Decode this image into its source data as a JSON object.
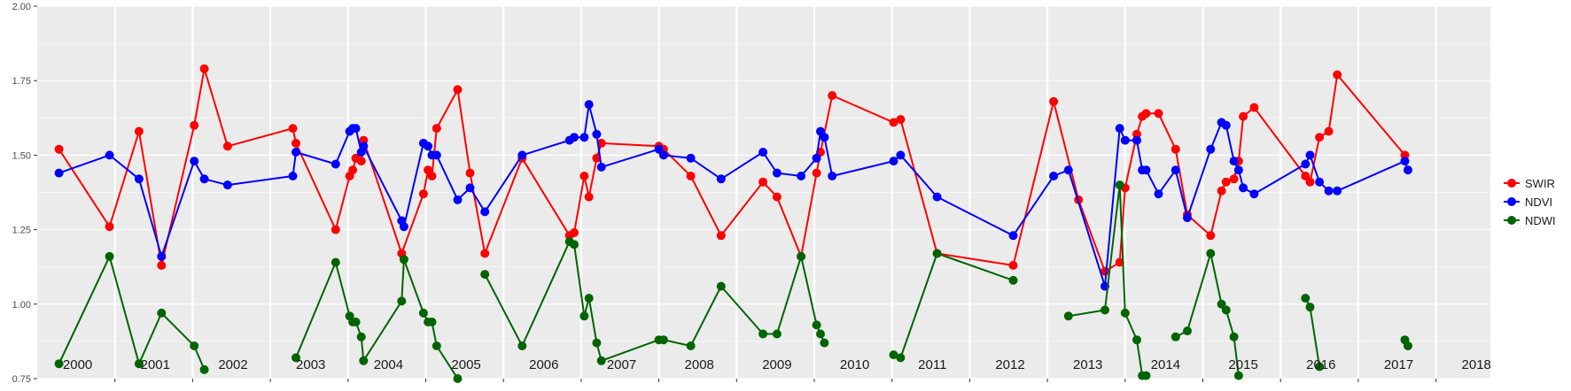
{
  "chart_data": {
    "type": "line",
    "title": "",
    "xlabel": "",
    "ylabel": "",
    "ylim": [
      0.75,
      2.0
    ],
    "xlim": [
      2000.0,
      2018.7
    ],
    "yticks": [
      "0.75",
      "1.00",
      "1.25",
      "1.50",
      "1.75",
      "2.00"
    ],
    "year_labels": [
      "2000",
      "2001",
      "2002",
      "2003",
      "2004",
      "2005",
      "2006",
      "2007",
      "2008",
      "2009",
      "2010",
      "2011",
      "2012",
      "2013",
      "2014",
      "2015",
      "2016",
      "2017",
      "2018"
    ],
    "grid": true,
    "legend_position": "right",
    "series": [
      {
        "name": "SWIR",
        "color": "#ff0000",
        "points": [
          [
            2000.28,
            1.52
          ],
          [
            2000.93,
            1.26
          ],
          [
            2001.31,
            1.58
          ],
          [
            2001.6,
            1.13
          ],
          [
            2002.02,
            1.6
          ],
          [
            2002.15,
            1.79
          ],
          [
            2002.45,
            1.53
          ],
          [
            2003.29,
            1.59
          ],
          [
            2003.33,
            1.54
          ],
          [
            2003.84,
            1.25
          ],
          [
            2004.02,
            1.43
          ],
          [
            2004.06,
            1.45
          ],
          [
            2004.1,
            1.49
          ],
          [
            2004.17,
            1.48
          ],
          [
            2004.2,
            1.55
          ],
          [
            2004.69,
            1.17
          ],
          [
            2004.97,
            1.37
          ],
          [
            2005.03,
            1.45
          ],
          [
            2005.08,
            1.43
          ],
          [
            2005.14,
            1.59
          ],
          [
            2005.41,
            1.72
          ],
          [
            2005.57,
            1.44
          ],
          [
            2005.76,
            1.17
          ],
          [
            2006.24,
            1.49
          ],
          [
            2006.85,
            1.23
          ],
          [
            2006.91,
            1.24
          ],
          [
            2007.04,
            1.43
          ],
          [
            2007.1,
            1.36
          ],
          [
            2007.2,
            1.49
          ],
          [
            2007.26,
            1.54
          ],
          [
            2008.0,
            1.53
          ],
          [
            2008.06,
            1.52
          ],
          [
            2008.41,
            1.43
          ],
          [
            2008.8,
            1.23
          ],
          [
            2009.34,
            1.41
          ],
          [
            2009.52,
            1.36
          ],
          [
            2009.83,
            1.16
          ],
          [
            2010.03,
            1.44
          ],
          [
            2010.08,
            1.51
          ],
          [
            2010.23,
            1.7
          ],
          [
            2011.02,
            1.61
          ],
          [
            2011.11,
            1.62
          ],
          [
            2011.58,
            1.17
          ],
          [
            2012.56,
            1.13
          ],
          [
            2013.08,
            1.68
          ],
          [
            2013.4,
            1.35
          ],
          [
            2013.74,
            1.11
          ],
          [
            2013.93,
            1.14
          ],
          [
            2014.0,
            1.39
          ],
          [
            2014.15,
            1.57
          ],
          [
            2014.22,
            1.63
          ],
          [
            2014.27,
            1.64
          ],
          [
            2014.43,
            1.64
          ],
          [
            2014.65,
            1.52
          ],
          [
            2014.8,
            1.3
          ],
          [
            2015.1,
            1.23
          ],
          [
            2015.24,
            1.38
          ],
          [
            2015.3,
            1.41
          ],
          [
            2015.4,
            1.42
          ],
          [
            2015.46,
            1.48
          ],
          [
            2015.52,
            1.63
          ],
          [
            2015.66,
            1.66
          ],
          [
            2016.32,
            1.43
          ],
          [
            2016.38,
            1.41
          ],
          [
            2016.5,
            1.56
          ],
          [
            2016.62,
            1.58
          ],
          [
            2016.73,
            1.77
          ],
          [
            2017.6,
            1.5
          ]
        ]
      },
      {
        "name": "NDVI",
        "color": "#0000ff",
        "points": [
          [
            2000.28,
            1.44
          ],
          [
            2000.93,
            1.5
          ],
          [
            2001.31,
            1.42
          ],
          [
            2001.6,
            1.16
          ],
          [
            2002.02,
            1.48
          ],
          [
            2002.15,
            1.42
          ],
          [
            2002.45,
            1.4
          ],
          [
            2003.29,
            1.43
          ],
          [
            2003.33,
            1.51
          ],
          [
            2003.84,
            1.47
          ],
          [
            2004.02,
            1.58
          ],
          [
            2004.06,
            1.59
          ],
          [
            2004.1,
            1.59
          ],
          [
            2004.17,
            1.51
          ],
          [
            2004.2,
            1.53
          ],
          [
            2004.69,
            1.28
          ],
          [
            2004.72,
            1.26
          ],
          [
            2004.97,
            1.54
          ],
          [
            2005.03,
            1.53
          ],
          [
            2005.08,
            1.5
          ],
          [
            2005.14,
            1.5
          ],
          [
            2005.41,
            1.35
          ],
          [
            2005.57,
            1.39
          ],
          [
            2005.76,
            1.31
          ],
          [
            2006.24,
            1.5
          ],
          [
            2006.85,
            1.55
          ],
          [
            2006.91,
            1.56
          ],
          [
            2007.04,
            1.56
          ],
          [
            2007.1,
            1.67
          ],
          [
            2007.2,
            1.57
          ],
          [
            2007.26,
            1.46
          ],
          [
            2008.0,
            1.52
          ],
          [
            2008.06,
            1.5
          ],
          [
            2008.41,
            1.49
          ],
          [
            2008.8,
            1.42
          ],
          [
            2009.34,
            1.51
          ],
          [
            2009.52,
            1.44
          ],
          [
            2009.83,
            1.43
          ],
          [
            2010.03,
            1.49
          ],
          [
            2010.08,
            1.58
          ],
          [
            2010.13,
            1.56
          ],
          [
            2010.23,
            1.43
          ],
          [
            2011.02,
            1.48
          ],
          [
            2011.11,
            1.5
          ],
          [
            2011.58,
            1.36
          ],
          [
            2012.56,
            1.23
          ],
          [
            2013.08,
            1.43
          ],
          [
            2013.27,
            1.45
          ],
          [
            2013.74,
            1.06
          ],
          [
            2013.93,
            1.59
          ],
          [
            2014.0,
            1.55
          ],
          [
            2014.15,
            1.55
          ],
          [
            2014.22,
            1.45
          ],
          [
            2014.27,
            1.45
          ],
          [
            2014.43,
            1.37
          ],
          [
            2014.65,
            1.45
          ],
          [
            2014.8,
            1.29
          ],
          [
            2015.1,
            1.52
          ],
          [
            2015.24,
            1.61
          ],
          [
            2015.3,
            1.6
          ],
          [
            2015.4,
            1.48
          ],
          [
            2015.46,
            1.45
          ],
          [
            2015.52,
            1.39
          ],
          [
            2015.66,
            1.37
          ],
          [
            2016.32,
            1.47
          ],
          [
            2016.38,
            1.5
          ],
          [
            2016.5,
            1.41
          ],
          [
            2016.62,
            1.38
          ],
          [
            2016.73,
            1.38
          ],
          [
            2017.6,
            1.48
          ],
          [
            2017.64,
            1.45
          ]
        ]
      },
      {
        "name": "NDWI",
        "color": "#006400",
        "points": [
          [
            2000.28,
            0.8
          ],
          [
            2000.93,
            1.16
          ],
          [
            2001.31,
            0.8
          ],
          [
            2001.6,
            0.97
          ],
          [
            2002.02,
            0.86
          ],
          [
            2002.15,
            0.78
          ],
          null,
          [
            2003.33,
            0.82
          ],
          [
            2003.84,
            1.14
          ],
          [
            2004.02,
            0.96
          ],
          [
            2004.06,
            0.94
          ],
          [
            2004.1,
            0.94
          ],
          [
            2004.17,
            0.89
          ],
          [
            2004.2,
            0.81
          ],
          [
            2004.69,
            1.01
          ],
          [
            2004.72,
            1.15
          ],
          [
            2004.97,
            0.97
          ],
          [
            2005.03,
            0.94
          ],
          [
            2005.08,
            0.94
          ],
          [
            2005.14,
            0.86
          ],
          [
            2005.41,
            0.75
          ],
          null,
          [
            2005.76,
            1.1
          ],
          [
            2006.24,
            0.86
          ],
          [
            2006.85,
            1.21
          ],
          [
            2006.91,
            1.2
          ],
          [
            2007.04,
            0.96
          ],
          [
            2007.1,
            1.02
          ],
          [
            2007.2,
            0.87
          ],
          [
            2007.26,
            0.81
          ],
          [
            2008.0,
            0.88
          ],
          [
            2008.06,
            0.88
          ],
          [
            2008.41,
            0.86
          ],
          [
            2008.8,
            1.06
          ],
          [
            2009.34,
            0.9
          ],
          [
            2009.52,
            0.9
          ],
          [
            2009.83,
            1.16
          ],
          [
            2010.03,
            0.93
          ],
          [
            2010.08,
            0.9
          ],
          [
            2010.13,
            0.87
          ],
          null,
          [
            2011.02,
            0.83
          ],
          [
            2011.11,
            0.82
          ],
          [
            2011.58,
            1.17
          ],
          [
            2012.56,
            1.08
          ],
          null,
          [
            2013.27,
            0.96
          ],
          [
            2013.74,
            0.98
          ],
          [
            2013.93,
            1.4
          ],
          [
            2014.0,
            0.97
          ],
          [
            2014.15,
            0.88
          ],
          [
            2014.22,
            0.76
          ],
          [
            2014.27,
            0.76
          ],
          null,
          [
            2014.65,
            0.89
          ],
          [
            2014.8,
            0.91
          ],
          [
            2015.1,
            1.17
          ],
          [
            2015.24,
            1.0
          ],
          [
            2015.3,
            0.98
          ],
          [
            2015.4,
            0.89
          ],
          [
            2015.46,
            0.76
          ],
          null,
          [
            2016.32,
            1.02
          ],
          [
            2016.38,
            0.99
          ],
          [
            2016.5,
            0.79
          ],
          null,
          [
            2017.6,
            0.88
          ],
          [
            2017.64,
            0.86
          ]
        ]
      }
    ]
  }
}
